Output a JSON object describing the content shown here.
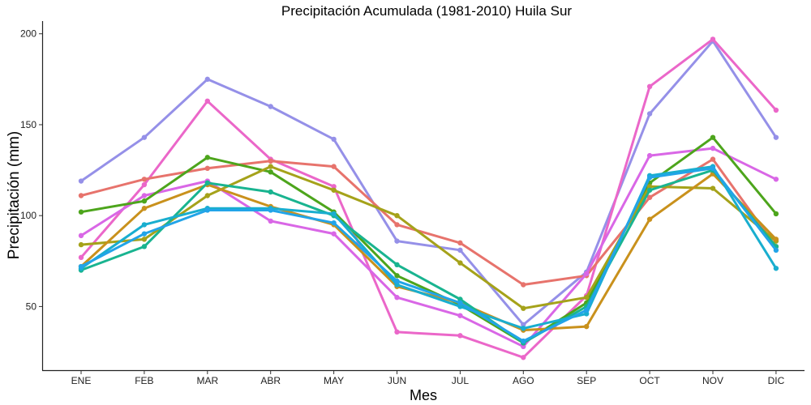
{
  "chart_data": {
    "type": "line",
    "title": "Precipitación Acumulada (1981-2010)  Huila Sur",
    "xlabel": "Mes",
    "ylabel": "Precipitación  (mm)",
    "categories": [
      "ENE",
      "FEB",
      "MAR",
      "ABR",
      "MAY",
      "JUN",
      "JUL",
      "AGO",
      "SEP",
      "OCT",
      "NOV",
      "DIC"
    ],
    "yticks": [
      50,
      100,
      150,
      200
    ],
    "ylim": [
      15,
      207
    ],
    "grid": false,
    "legend": "none",
    "series": [
      {
        "color": "#9590E8",
        "values": [
          119,
          143,
          175,
          160,
          142,
          86,
          81,
          40,
          69,
          156,
          196,
          143
        ]
      },
      {
        "color": "#EB67C9",
        "values": [
          77,
          117,
          163,
          131,
          116,
          36,
          34,
          22,
          56,
          171,
          197,
          158
        ]
      },
      {
        "color": "#E7736C",
        "values": [
          111,
          120,
          126,
          130,
          127,
          95,
          85,
          62,
          67,
          110,
          131,
          83
        ]
      },
      {
        "color": "#D967E6",
        "values": [
          89,
          111,
          119,
          97,
          90,
          55,
          45,
          28,
          68,
          133,
          137,
          120
        ]
      },
      {
        "color": "#4DA51C",
        "values": [
          102,
          108,
          132,
          124,
          102,
          67,
          51,
          30,
          52,
          118,
          143,
          101
        ]
      },
      {
        "color": "#A5A21A",
        "values": [
          84,
          87,
          111,
          127,
          114,
          100,
          74,
          49,
          55,
          116,
          115,
          86
        ]
      },
      {
        "color": "#C9911C",
        "values": [
          72,
          104,
          117,
          105,
          95,
          61,
          52,
          37,
          39,
          98,
          123,
          87
        ]
      },
      {
        "color": "#19B490",
        "values": [
          70,
          83,
          118,
          113,
          100,
          73,
          54,
          30,
          50,
          114,
          125,
          83
        ]
      },
      {
        "color": "#19AECF",
        "values": [
          71,
          95,
          104,
          104,
          101,
          62,
          50,
          38,
          46,
          122,
          127,
          71
        ]
      },
      {
        "color": "#22A4E8",
        "values": [
          72,
          90,
          103,
          103,
          96,
          64,
          52,
          31,
          48,
          121,
          126,
          81
        ]
      }
    ]
  }
}
